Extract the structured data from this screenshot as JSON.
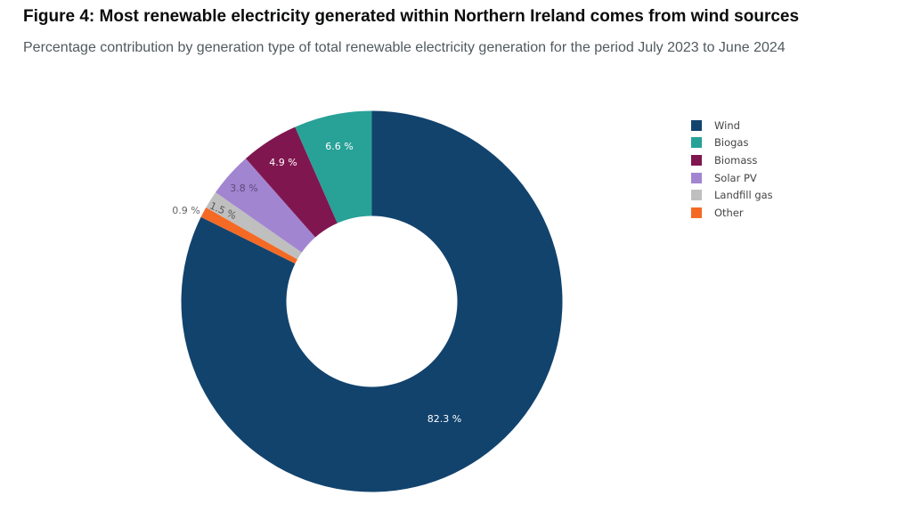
{
  "figure": {
    "title": "Figure 4: Most renewable electricity generated within Northern Ireland comes from wind sources",
    "subtitle": "Percentage contribution by generation type of total renewable electricity generation for the period July 2023 to June 2024"
  },
  "legend": {
    "items": [
      {
        "label": "Wind",
        "color": "#12436d"
      },
      {
        "label": "Biogas",
        "color": "#28a197"
      },
      {
        "label": "Biomass",
        "color": "#801650"
      },
      {
        "label": "Solar PV",
        "color": "#a285d1"
      },
      {
        "label": "Landfill gas",
        "color": "#bfbfbf"
      },
      {
        "label": "Other",
        "color": "#f46a25"
      }
    ]
  },
  "chart_data": {
    "type": "pie",
    "subtype": "donut",
    "title": "Figure 4: Most renewable electricity generated within Northern Ireland comes from wind sources",
    "subtitle": "Percentage contribution by generation type of total renewable electricity generation for the period July 2023 to June 2024",
    "categories": [
      "Wind",
      "Other",
      "Landfill gas",
      "Solar PV",
      "Biomass",
      "Biogas"
    ],
    "values": [
      82.3,
      0.9,
      1.5,
      3.8,
      4.9,
      6.6
    ],
    "labels": [
      "82.3 %",
      "0.9 %",
      "1.5 %",
      "3.8 %",
      "4.9 %",
      "6.6 %"
    ],
    "colors": [
      "#12436d",
      "#f46a25",
      "#bfbfbf",
      "#a285d1",
      "#801650",
      "#28a197"
    ],
    "unit": "%",
    "start_angle": "12 o'clock",
    "direction": "clockwise",
    "legend_position": "right",
    "legend_order": [
      "Wind",
      "Biogas",
      "Biomass",
      "Solar PV",
      "Landfill gas",
      "Other"
    ]
  }
}
